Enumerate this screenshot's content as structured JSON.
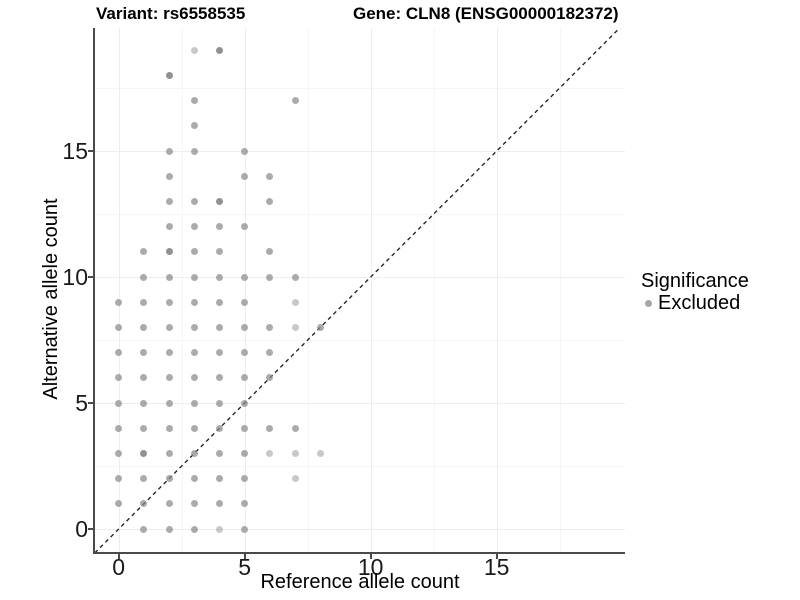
{
  "header": {
    "variant_title": "Variant: rs6558535",
    "gene_title": "Gene: CLN8 (ENSG00000182372)"
  },
  "chart_data": {
    "type": "scatter",
    "title_left": "Variant: rs6558535",
    "title_right": "Gene: CLN8 (ENSG00000182372)",
    "xlabel": "Reference allele count",
    "ylabel": "Alternative allele count",
    "x_ticks": [
      0,
      5,
      10,
      15
    ],
    "y_ticks": [
      0,
      5,
      10,
      15
    ],
    "xlim": [
      -0.95,
      19.9
    ],
    "ylim": [
      -0.95,
      19.9
    ],
    "grid": "major and minor gridlines, minor at 2.5 intervals",
    "reference_line": "dashed identity line y = x",
    "point_color": "#a6a6a6",
    "legend": {
      "title": "Significance",
      "position": "right",
      "entries": [
        {
          "label": "Excluded",
          "color": "#a6a6a6"
        }
      ]
    },
    "points": [
      [
        1,
        0
      ],
      [
        2,
        0
      ],
      [
        3,
        0
      ],
      [
        4,
        0,
        "l"
      ],
      [
        5,
        0
      ],
      [
        0,
        1
      ],
      [
        1,
        1
      ],
      [
        2,
        1
      ],
      [
        3,
        1
      ],
      [
        4,
        1
      ],
      [
        5,
        1
      ],
      [
        0,
        2
      ],
      [
        1,
        2
      ],
      [
        2,
        2
      ],
      [
        3,
        2
      ],
      [
        4,
        2
      ],
      [
        5,
        2
      ],
      [
        7,
        2,
        "l"
      ],
      [
        0,
        3
      ],
      [
        1,
        3,
        "d"
      ],
      [
        2,
        3
      ],
      [
        3,
        3
      ],
      [
        4,
        3
      ],
      [
        5,
        3
      ],
      [
        6,
        3,
        "l"
      ],
      [
        7,
        3,
        "l"
      ],
      [
        8,
        3,
        "l"
      ],
      [
        0,
        4
      ],
      [
        1,
        4
      ],
      [
        2,
        4
      ],
      [
        3,
        4
      ],
      [
        4,
        4
      ],
      [
        5,
        4
      ],
      [
        6,
        4
      ],
      [
        7,
        4
      ],
      [
        0,
        5
      ],
      [
        1,
        5
      ],
      [
        2,
        5
      ],
      [
        3,
        5
      ],
      [
        4,
        5
      ],
      [
        5,
        5
      ],
      [
        0,
        6
      ],
      [
        1,
        6
      ],
      [
        2,
        6
      ],
      [
        3,
        6
      ],
      [
        4,
        6
      ],
      [
        5,
        6
      ],
      [
        6,
        6
      ],
      [
        0,
        7
      ],
      [
        1,
        7
      ],
      [
        2,
        7
      ],
      [
        3,
        7
      ],
      [
        4,
        7
      ],
      [
        5,
        7
      ],
      [
        6,
        7
      ],
      [
        0,
        8
      ],
      [
        1,
        8
      ],
      [
        2,
        8
      ],
      [
        3,
        8
      ],
      [
        4,
        8
      ],
      [
        5,
        8
      ],
      [
        6,
        8
      ],
      [
        7,
        8,
        "l"
      ],
      [
        8,
        8
      ],
      [
        0,
        9
      ],
      [
        1,
        9
      ],
      [
        2,
        9
      ],
      [
        3,
        9
      ],
      [
        4,
        9
      ],
      [
        5,
        9
      ],
      [
        7,
        9,
        "l"
      ],
      [
        1,
        10
      ],
      [
        2,
        10
      ],
      [
        3,
        10
      ],
      [
        4,
        10
      ],
      [
        5,
        10
      ],
      [
        6,
        10
      ],
      [
        7,
        10
      ],
      [
        1,
        11
      ],
      [
        2,
        11,
        "d"
      ],
      [
        3,
        11
      ],
      [
        4,
        11
      ],
      [
        6,
        11
      ],
      [
        2,
        12
      ],
      [
        3,
        12
      ],
      [
        4,
        12
      ],
      [
        5,
        12
      ],
      [
        2,
        13
      ],
      [
        3,
        13
      ],
      [
        4,
        13,
        "d"
      ],
      [
        6,
        13
      ],
      [
        2,
        14
      ],
      [
        5,
        14
      ],
      [
        6,
        14
      ],
      [
        2,
        15
      ],
      [
        3,
        15
      ],
      [
        5,
        15
      ],
      [
        3,
        16
      ],
      [
        3,
        17
      ],
      [
        7,
        17
      ],
      [
        2,
        18,
        "d"
      ],
      [
        3,
        19,
        "l"
      ],
      [
        4,
        19,
        "d"
      ]
    ]
  }
}
